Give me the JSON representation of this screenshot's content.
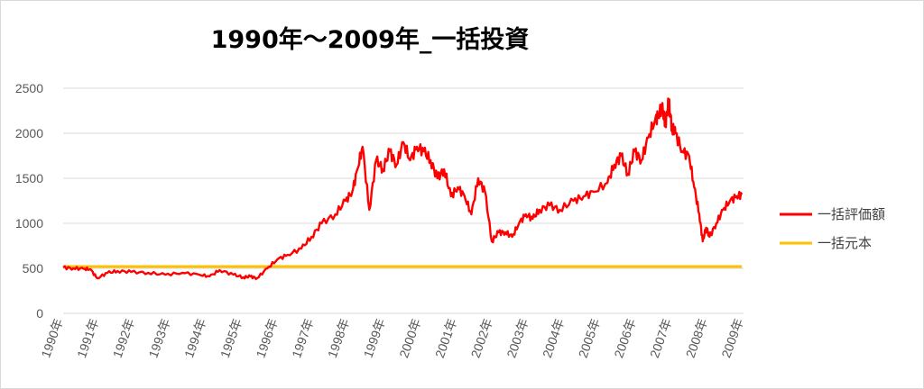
{
  "chart_data": {
    "type": "line",
    "title": "1990年～2009年_一括投資",
    "xlabel": "",
    "ylabel": "",
    "ylim": [
      0,
      2500
    ],
    "y_ticks": [
      "0",
      "500",
      "1000",
      "1500",
      "2000",
      "2500"
    ],
    "x_tick_labels": [
      "1990年",
      "1991年",
      "1992年",
      "1993年",
      "1994年",
      "1995年",
      "1996年",
      "1997年",
      "1998年",
      "1999年",
      "2000年",
      "2001年",
      "2002年",
      "2003年",
      "2004年",
      "2005年",
      "2006年",
      "2007年",
      "2008年",
      "2009年"
    ],
    "grid": true,
    "legend_position": "right",
    "series": [
      {
        "name": "一括評価額",
        "color": "#ff0000",
        "x": [
          1990.0,
          1990.3,
          1990.6,
          1990.8,
          1991.0,
          1991.3,
          1991.6,
          1992.0,
          1992.5,
          1993.0,
          1993.5,
          1994.0,
          1994.3,
          1994.6,
          1995.0,
          1995.3,
          1995.5,
          1995.7,
          1996.0,
          1996.3,
          1996.6,
          1997.0,
          1997.3,
          1997.6,
          1998.0,
          1998.3,
          1998.5,
          1998.65,
          1998.8,
          1999.0,
          1999.2,
          1999.4,
          1999.6,
          1999.8,
          2000.0,
          2000.2,
          2000.4,
          2000.6,
          2000.8,
          2001.0,
          2001.2,
          2001.4,
          2001.6,
          2001.8,
          2002.0,
          2002.2,
          2002.4,
          2002.6,
          2002.8,
          2003.0,
          2003.2,
          2003.4,
          2003.6,
          2003.8,
          2004.0,
          2004.3,
          2004.6,
          2005.0,
          2005.3,
          2005.6,
          2006.0,
          2006.2,
          2006.4,
          2006.6,
          2006.8,
          2007.0,
          2007.2,
          2007.4,
          2007.5,
          2007.6,
          2007.7,
          2007.8,
          2007.9,
          2008.0,
          2008.2,
          2008.4,
          2008.55,
          2008.7,
          2008.8,
          2008.9,
          2009.0,
          2009.2,
          2009.4,
          2009.6,
          2009.8,
          2009.95
        ],
        "values": [
          510,
          500,
          495,
          490,
          390,
          450,
          470,
          460,
          450,
          430,
          450,
          430,
          410,
          480,
          430,
          400,
          410,
          390,
          500,
          600,
          650,
          720,
          850,
          1000,
          1100,
          1250,
          1350,
          1600,
          1850,
          1150,
          1700,
          1600,
          1800,
          1650,
          1900,
          1700,
          1850,
          1800,
          1700,
          1500,
          1600,
          1300,
          1400,
          1300,
          1100,
          1500,
          1350,
          800,
          900,
          900,
          850,
          1000,
          1100,
          1050,
          1150,
          1200,
          1150,
          1250,
          1300,
          1350,
          1450,
          1650,
          1750,
          1550,
          1800,
          1700,
          1950,
          2150,
          2200,
          2300,
          2100,
          2350,
          2050,
          2000,
          1800,
          1750,
          1400,
          1100,
          800,
          950,
          850,
          1000,
          1150,
          1250,
          1300,
          1320
        ]
      },
      {
        "name": "一括元本",
        "color": "#ffc000",
        "x": [
          1990.0,
          2009.95
        ],
        "values": [
          520,
          520
        ]
      }
    ]
  }
}
